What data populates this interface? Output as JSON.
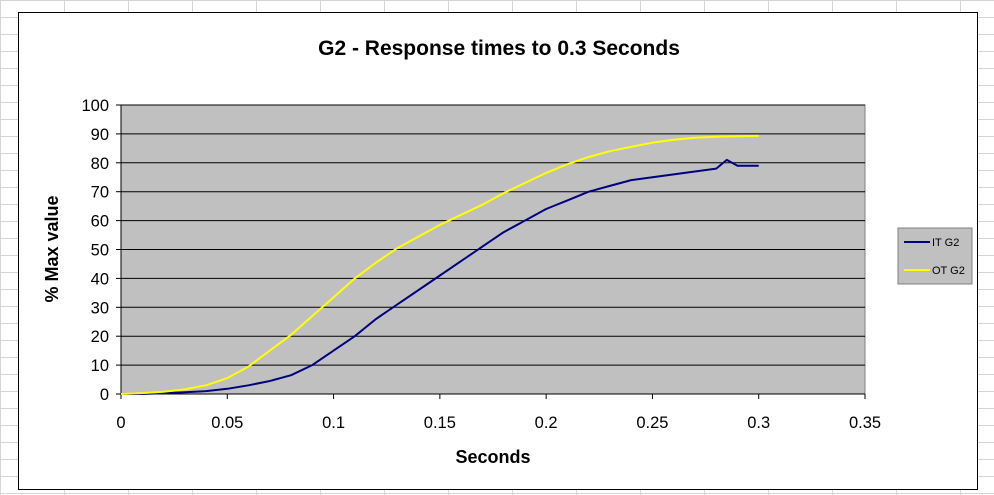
{
  "chart_data": {
    "type": "line",
    "title": "G2 - Response times to 0.3 Seconds",
    "xlabel": "Seconds",
    "ylabel": "% Max value",
    "xlim": [
      0,
      0.35
    ],
    "ylim": [
      0,
      100
    ],
    "x_ticks": [
      "0",
      "0.05",
      "0.1",
      "0.15",
      "0.2",
      "0.25",
      "0.3",
      "0.35"
    ],
    "y_ticks": [
      "0",
      "10",
      "20",
      "30",
      "40",
      "50",
      "60",
      "70",
      "80",
      "90",
      "100"
    ],
    "grid": "horizontal",
    "legend_position": "right",
    "plot_background": "#c0c0c0",
    "series": [
      {
        "name": "IT G2",
        "color": "#000080",
        "x": [
          0,
          0.01,
          0.02,
          0.03,
          0.04,
          0.05,
          0.06,
          0.07,
          0.08,
          0.09,
          0.1,
          0.11,
          0.12,
          0.13,
          0.14,
          0.15,
          0.16,
          0.17,
          0.18,
          0.19,
          0.2,
          0.21,
          0.22,
          0.23,
          0.24,
          0.25,
          0.26,
          0.27,
          0.28,
          0.285,
          0.29,
          0.3
        ],
        "values": [
          0,
          0,
          0.3,
          0.6,
          1,
          1.8,
          3,
          4.5,
          6.5,
          10,
          15,
          20,
          26,
          31,
          36,
          41,
          46,
          51,
          56,
          60,
          64,
          67,
          70,
          72,
          74,
          75,
          76,
          77,
          78,
          81,
          79,
          79
        ]
      },
      {
        "name": "OT G2",
        "color": "#ffff00",
        "x": [
          0,
          0.01,
          0.02,
          0.03,
          0.04,
          0.05,
          0.06,
          0.07,
          0.08,
          0.09,
          0.1,
          0.11,
          0.12,
          0.13,
          0.14,
          0.15,
          0.16,
          0.17,
          0.18,
          0.19,
          0.2,
          0.21,
          0.22,
          0.23,
          0.24,
          0.25,
          0.26,
          0.27,
          0.28,
          0.29,
          0.3
        ],
        "values": [
          0,
          0.3,
          0.8,
          1.6,
          3,
          5.5,
          9.5,
          15,
          20.5,
          27,
          33.5,
          40,
          45.5,
          50.5,
          54.5,
          58.5,
          62,
          65.5,
          69.5,
          73,
          76.5,
          79.5,
          82,
          84,
          85.5,
          87,
          88,
          88.7,
          89,
          89.2,
          89.3
        ]
      }
    ]
  }
}
